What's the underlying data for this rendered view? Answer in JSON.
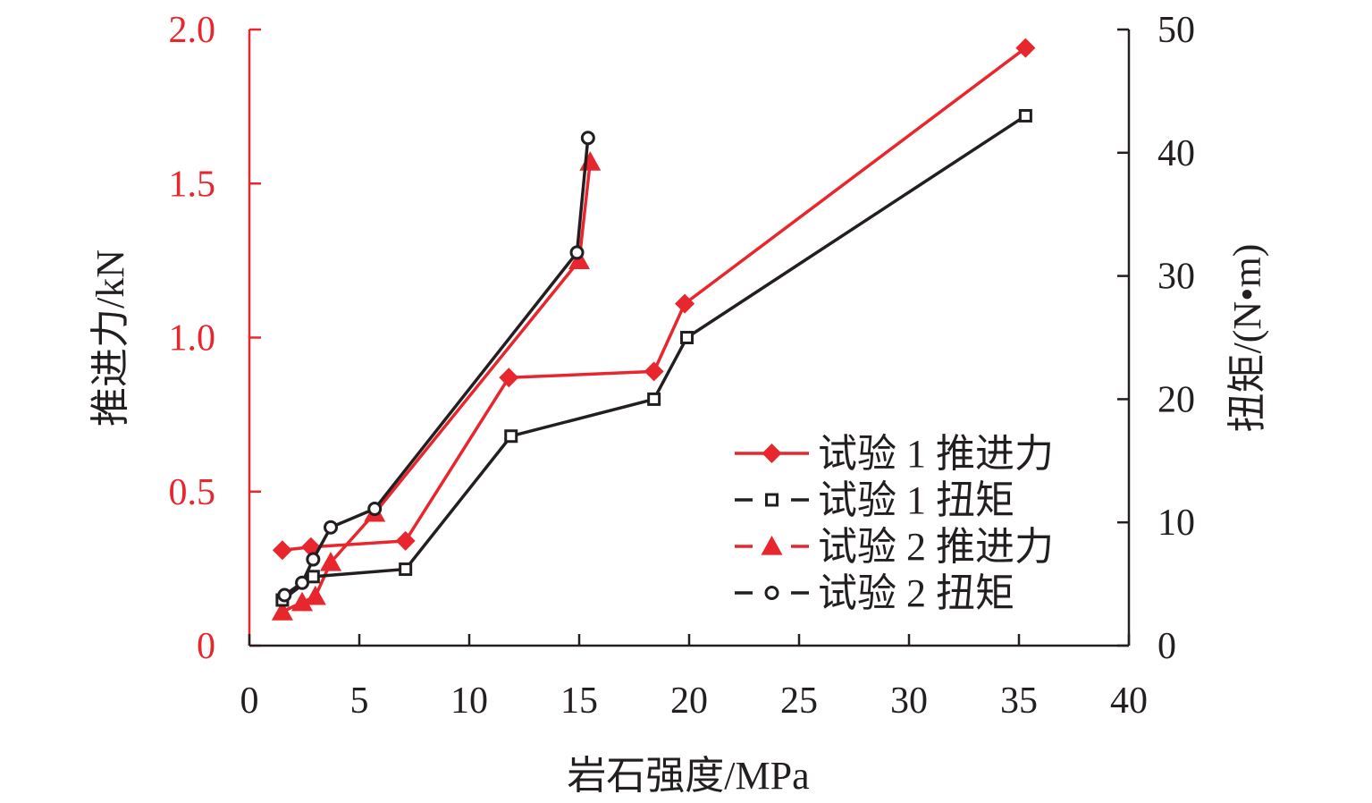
{
  "chart_data": {
    "type": "line",
    "xlabel": "岩石强度/MPa",
    "ylabel_left": "推进力/kN",
    "ylabel_right": "扭矩/(N•m)",
    "xlim": [
      0,
      40
    ],
    "xticks": [
      0,
      5,
      10,
      15,
      20,
      25,
      30,
      35,
      40
    ],
    "ylim_left": [
      0,
      2.0
    ],
    "yticks_left": [
      "0",
      "0.5",
      "1.0",
      "1.5",
      "2.0"
    ],
    "ylim_right": [
      0,
      50
    ],
    "yticks_right": [
      "0",
      "10",
      "20",
      "30",
      "40",
      "50"
    ],
    "grid": false,
    "legend_position": "lower-right",
    "colors": {
      "red": "#e8262d",
      "black": "#231f20"
    },
    "series": [
      {
        "name": "试验 1 推进力",
        "axis": "left",
        "color": "#e8262d",
        "marker": "diamond",
        "dash": "solid",
        "x": [
          1.5,
          2.8,
          7.1,
          11.8,
          18.4,
          19.8,
          35.3
        ],
        "y": [
          0.31,
          0.32,
          0.34,
          0.87,
          0.89,
          1.11,
          1.94
        ]
      },
      {
        "name": "试验 1 扭矩",
        "axis": "right",
        "color": "#231f20",
        "marker": "square",
        "dash": "solid",
        "x": [
          1.5,
          2.9,
          7.1,
          11.9,
          18.4,
          19.9,
          35.3
        ],
        "y": [
          3.7,
          5.6,
          6.2,
          17.0,
          20.0,
          25.0,
          43.0
        ]
      },
      {
        "name": "试验 2 推进力",
        "axis": "left",
        "color": "#e8262d",
        "marker": "triangle",
        "dash": "solid",
        "x": [
          1.5,
          2.4,
          3.0,
          3.7,
          5.7,
          15.0,
          15.5
        ],
        "y": [
          0.11,
          0.14,
          0.16,
          0.27,
          0.43,
          1.25,
          1.57
        ]
      },
      {
        "name": "试验 2 扭矩",
        "axis": "right",
        "color": "#231f20",
        "marker": "circle",
        "dash": "solid",
        "x": [
          1.6,
          2.4,
          2.9,
          3.7,
          5.7,
          14.9,
          15.4
        ],
        "y": [
          4.1,
          5.1,
          7.0,
          9.6,
          11.1,
          31.9,
          41.2
        ]
      }
    ]
  }
}
